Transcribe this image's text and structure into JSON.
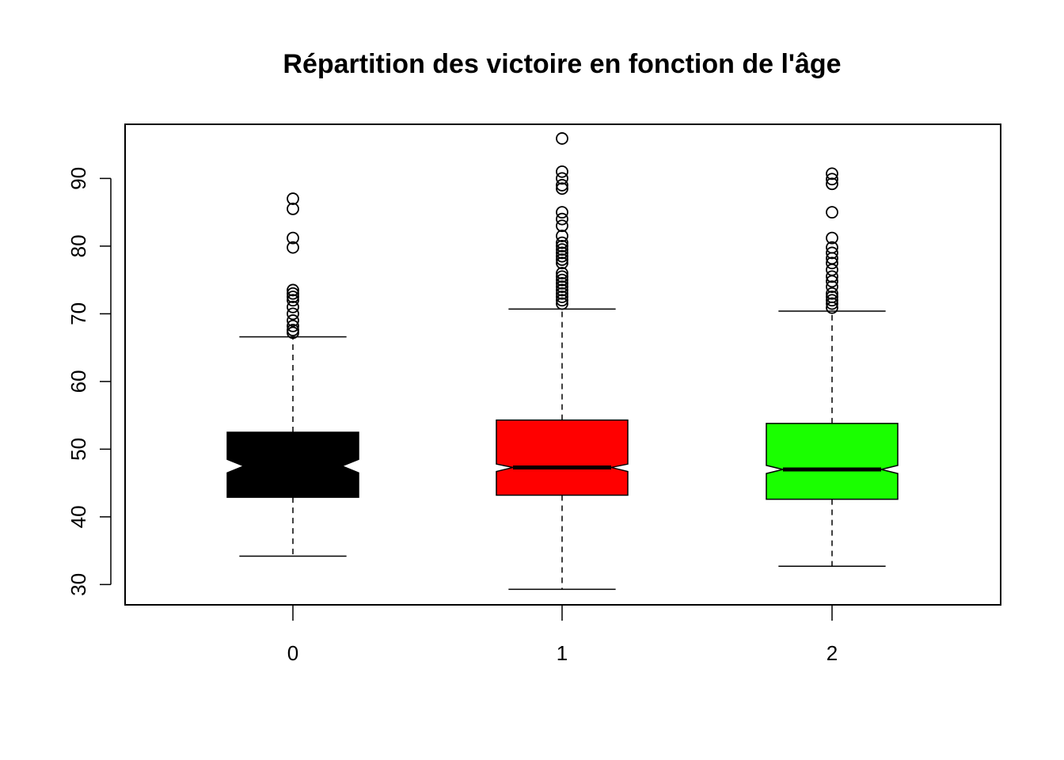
{
  "chart_data": {
    "type": "boxplot",
    "title": "Répartition des victoire en fonction de l'âge",
    "xlabel": "",
    "ylabel": "",
    "ylim": [
      27,
      98
    ],
    "y_ticks": [
      30,
      40,
      50,
      60,
      70,
      80,
      90
    ],
    "categories": [
      "0",
      "1",
      "2"
    ],
    "notched": true,
    "grid": false,
    "legend": "none",
    "boxes": [
      {
        "category": "0",
        "color": "#000000",
        "whisker_low": 34.2,
        "q1": 42.9,
        "median": 47.5,
        "q3": 52.5,
        "whisker_high": 66.6,
        "notch_low": 46.5,
        "notch_high": 48.5,
        "outliers": [
          87.0,
          85.5,
          81.2,
          79.8,
          73.5,
          73.0,
          72.5,
          72.0,
          71.0,
          70.0,
          69.0,
          68.2,
          67.6,
          67.2
        ]
      },
      {
        "category": "1",
        "color": "#ff0000",
        "whisker_low": 29.3,
        "q1": 43.2,
        "median": 47.3,
        "q3": 54.3,
        "whisker_high": 70.7,
        "notch_low": 46.7,
        "notch_high": 47.8,
        "outliers": [
          95.9,
          91.0,
          90.0,
          89.0,
          88.5,
          85.0,
          84.0,
          83.0,
          81.5,
          80.5,
          80.0,
          79.5,
          79.0,
          78.5,
          78.0,
          77.5,
          76.0,
          75.5,
          75.0,
          74.5,
          74.0,
          73.5,
          73.0,
          72.5,
          72.0,
          71.5
        ]
      },
      {
        "category": "2",
        "color": "#1aff00",
        "whisker_low": 32.7,
        "q1": 42.6,
        "median": 47.0,
        "q3": 53.8,
        "whisker_high": 70.4,
        "notch_low": 46.4,
        "notch_high": 47.6,
        "outliers": [
          90.7,
          89.9,
          89.2,
          85.0,
          81.2,
          79.8,
          79.0,
          78.2,
          77.5,
          76.5,
          75.5,
          74.8,
          74.0,
          73.0,
          72.5,
          72.0,
          71.5,
          70.9
        ]
      }
    ]
  }
}
